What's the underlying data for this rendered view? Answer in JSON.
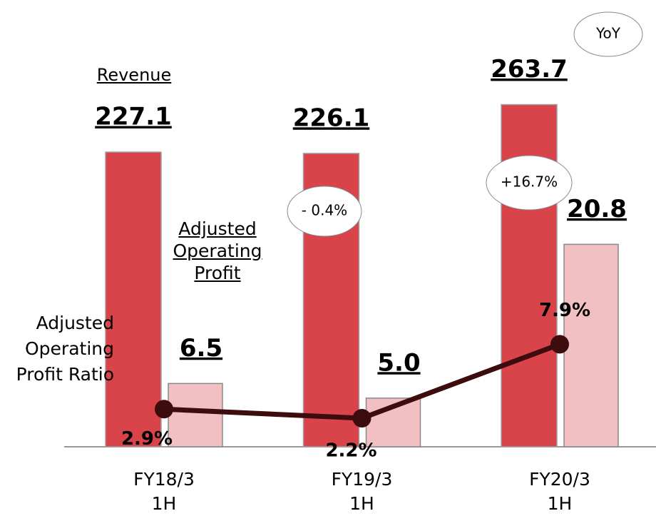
{
  "chart_data": {
    "type": "bar",
    "categories": [
      "FY18/3 1H",
      "FY19/3 1H",
      "FY20/3 1H"
    ],
    "series": [
      {
        "name": "Revenue",
        "type": "bar",
        "color": "#d9444b",
        "values": [
          227.1,
          226.1,
          263.7
        ],
        "value_labels": [
          "227.1",
          "226.1",
          "263.7"
        ],
        "ylim": [
          0,
          330
        ]
      },
      {
        "name": "Adjusted Operating Profit",
        "type": "bar",
        "color": "#f2c0c2",
        "values": [
          6.5,
          5.0,
          20.8
        ],
        "value_labels": [
          "6.5",
          "5.0",
          "20.8"
        ],
        "ylim": [
          0,
          44
        ]
      },
      {
        "name": "Adjusted Operating Profit Ratio",
        "type": "line",
        "color": "#3d0c0c",
        "values": [
          2.9,
          2.2,
          7.9
        ],
        "value_labels": [
          "2.9%",
          "2.2%",
          "7.9%"
        ],
        "ylim": [
          0,
          33
        ]
      }
    ],
    "annotations": {
      "yoy": "YoY",
      "fy19_change": "- 0.4%",
      "fy20_change": "+16.7%"
    }
  }
}
